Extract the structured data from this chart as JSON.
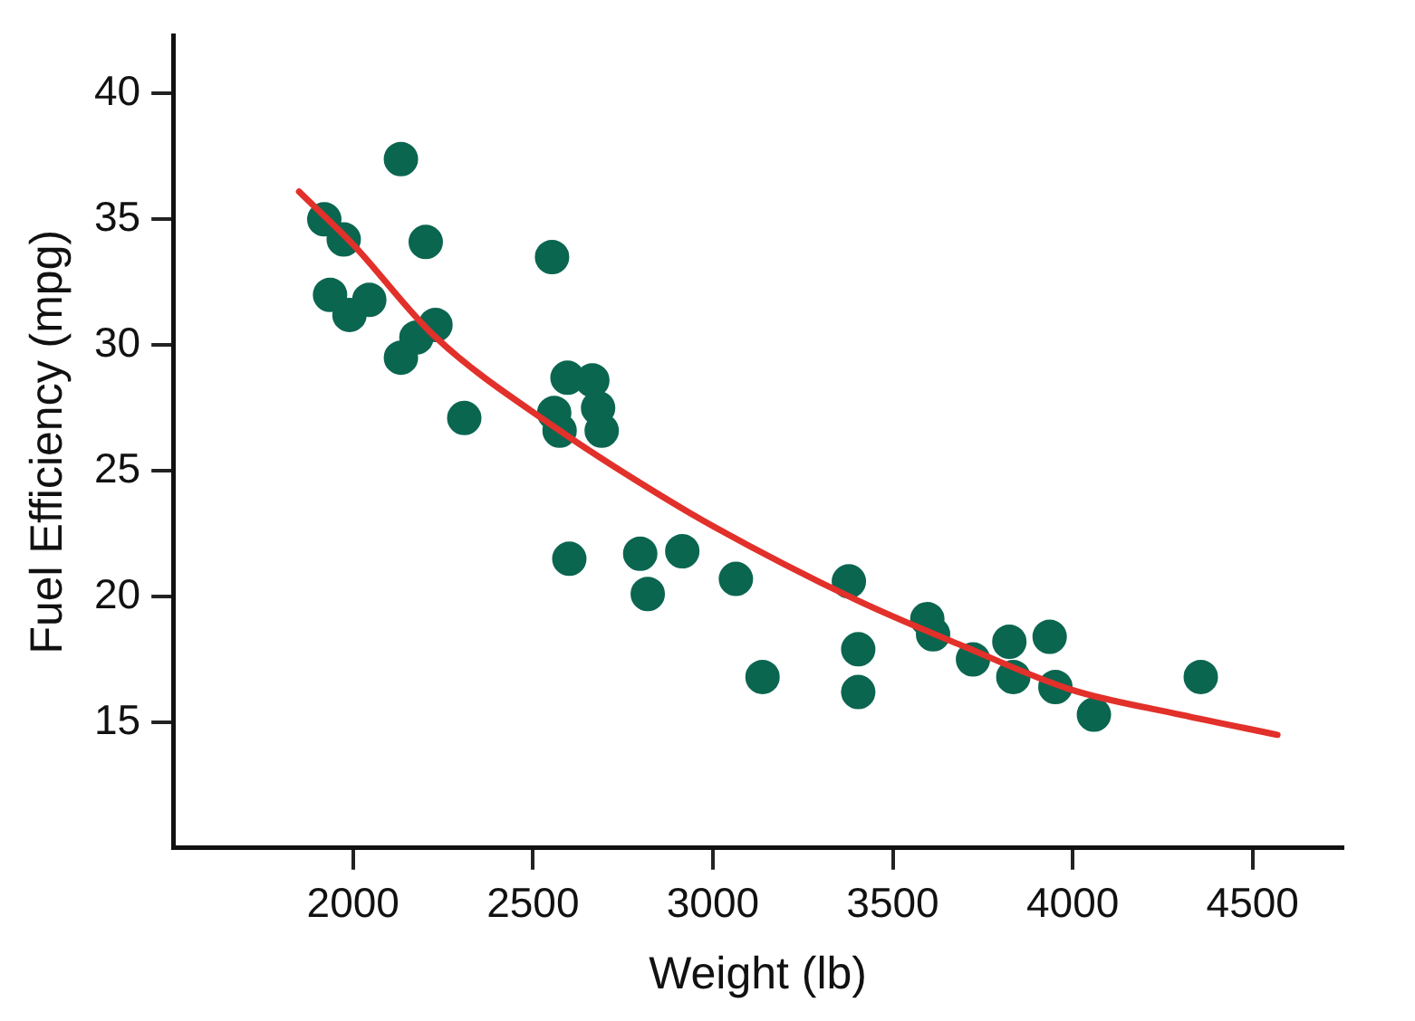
{
  "chart_data": {
    "type": "scatter",
    "xlabel": "Weight (lb)",
    "ylabel": "Fuel Efficiency (mpg)",
    "xlim": [
      1500,
      4750
    ],
    "xticks": [
      2000,
      2500,
      3000,
      3500,
      4000,
      4500
    ],
    "ylim": [
      10,
      42.3
    ],
    "yticks": [
      15,
      20,
      25,
      30,
      35,
      40
    ],
    "grid": false,
    "marker": "circle",
    "series": [
      {
        "type": "scatter",
        "color": "#0b6650",
        "x": [
          1920,
          1974,
          1936,
          1990,
          2045,
          2133,
          2202,
          2133,
          2176,
          2229,
          2309,
          2553,
          2596,
          2665,
          2559,
          2681,
          2691,
          2574,
          2601,
          2798,
          2819,
          2915,
          3064,
          3138,
          3378,
          3404,
          3404,
          3596,
          3612,
          3723,
          3824,
          3835,
          3936,
          3952,
          4059,
          4356
        ],
        "values": [
          35.0,
          34.2,
          32.0,
          31.2,
          31.8,
          37.4,
          34.1,
          29.5,
          30.3,
          30.8,
          27.1,
          33.5,
          28.7,
          28.6,
          27.3,
          27.5,
          26.6,
          26.6,
          21.5,
          21.7,
          20.1,
          21.8,
          20.7,
          16.8,
          20.6,
          17.9,
          16.2,
          19.1,
          18.5,
          17.5,
          18.2,
          16.8,
          18.4,
          16.4,
          15.3,
          16.8
        ]
      },
      {
        "type": "line",
        "color": "#e2302a",
        "marker": "none",
        "line_style": "solid",
        "x": [
          1850,
          2000,
          2223,
          2574,
          2800,
          3000,
          3394,
          3700,
          3995,
          4300,
          4569
        ],
        "values": [
          36.1,
          34.0,
          30.4,
          26.6,
          24.5,
          22.8,
          19.9,
          18.0,
          16.3,
          15.3,
          14.5
        ]
      }
    ]
  }
}
